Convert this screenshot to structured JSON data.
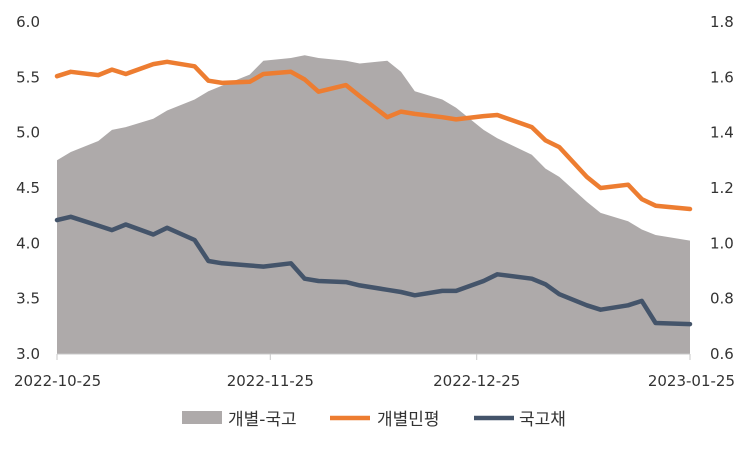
{
  "chart_data": {
    "type": "area+line",
    "title": "",
    "x": [
      "2022-10-25",
      "2022-10-27",
      "2022-10-31",
      "2022-11-02",
      "2022-11-04",
      "2022-11-08",
      "2022-11-10",
      "2022-11-14",
      "2022-11-16",
      "2022-11-18",
      "2022-11-22",
      "2022-11-24",
      "2022-11-28",
      "2022-11-30",
      "2022-12-02",
      "2022-12-06",
      "2022-12-08",
      "2022-12-12",
      "2022-12-14",
      "2022-12-16",
      "2022-12-20",
      "2022-12-22",
      "2022-12-26",
      "2022-12-28",
      "2023-01-02",
      "2023-01-04",
      "2023-01-06",
      "2023-01-10",
      "2023-01-12",
      "2023-01-16",
      "2023-01-18",
      "2023-01-20",
      "2023-01-25"
    ],
    "x_ticks": [
      "2022-10-25",
      "2022-11-25",
      "2022-12-25",
      "2023-01-25"
    ],
    "y_left": {
      "ticks": [
        "3.0",
        "3.5",
        "4.0",
        "4.5",
        "5.0",
        "5.5",
        "6.0"
      ],
      "range": [
        3.0,
        6.0
      ]
    },
    "y_right": {
      "ticks": [
        "0.6",
        "0.8",
        "1.0",
        "1.2",
        "1.4",
        "1.6",
        "1.8"
      ],
      "range": [
        0.6,
        1.8
      ]
    },
    "series": [
      {
        "name": "개별-국고",
        "kind": "area",
        "axis": "right",
        "color": "#aeaaaa",
        "values": [
          1.3,
          1.33,
          1.37,
          1.41,
          1.42,
          1.45,
          1.48,
          1.52,
          1.55,
          1.57,
          1.61,
          1.66,
          1.67,
          1.68,
          1.67,
          1.66,
          1.65,
          1.66,
          1.62,
          1.55,
          1.52,
          1.49,
          1.41,
          1.38,
          1.32,
          1.27,
          1.24,
          1.15,
          1.11,
          1.08,
          1.05,
          1.03,
          1.01
        ]
      },
      {
        "name": "개별민평",
        "kind": "line",
        "axis": "left",
        "color": "#ed7d31",
        "values": [
          5.51,
          5.55,
          5.52,
          5.57,
          5.53,
          5.62,
          5.64,
          5.6,
          5.47,
          5.45,
          5.46,
          5.53,
          5.55,
          5.48,
          5.37,
          5.43,
          5.33,
          5.14,
          5.19,
          5.17,
          5.14,
          5.12,
          5.15,
          5.16,
          5.05,
          4.93,
          4.87,
          4.6,
          4.5,
          4.53,
          4.4,
          4.34,
          4.31
        ]
      },
      {
        "name": "국고채",
        "kind": "line",
        "axis": "left",
        "color": "#44546a",
        "values": [
          4.21,
          4.24,
          4.16,
          4.12,
          4.17,
          4.08,
          4.14,
          4.03,
          3.84,
          3.82,
          3.8,
          3.79,
          3.82,
          3.68,
          3.66,
          3.65,
          3.62,
          3.58,
          3.56,
          3.53,
          3.57,
          3.57,
          3.66,
          3.72,
          3.68,
          3.63,
          3.54,
          3.44,
          3.4,
          3.44,
          3.48,
          3.28,
          3.27
        ]
      }
    ],
    "legend_position": "bottom",
    "grid": false
  }
}
